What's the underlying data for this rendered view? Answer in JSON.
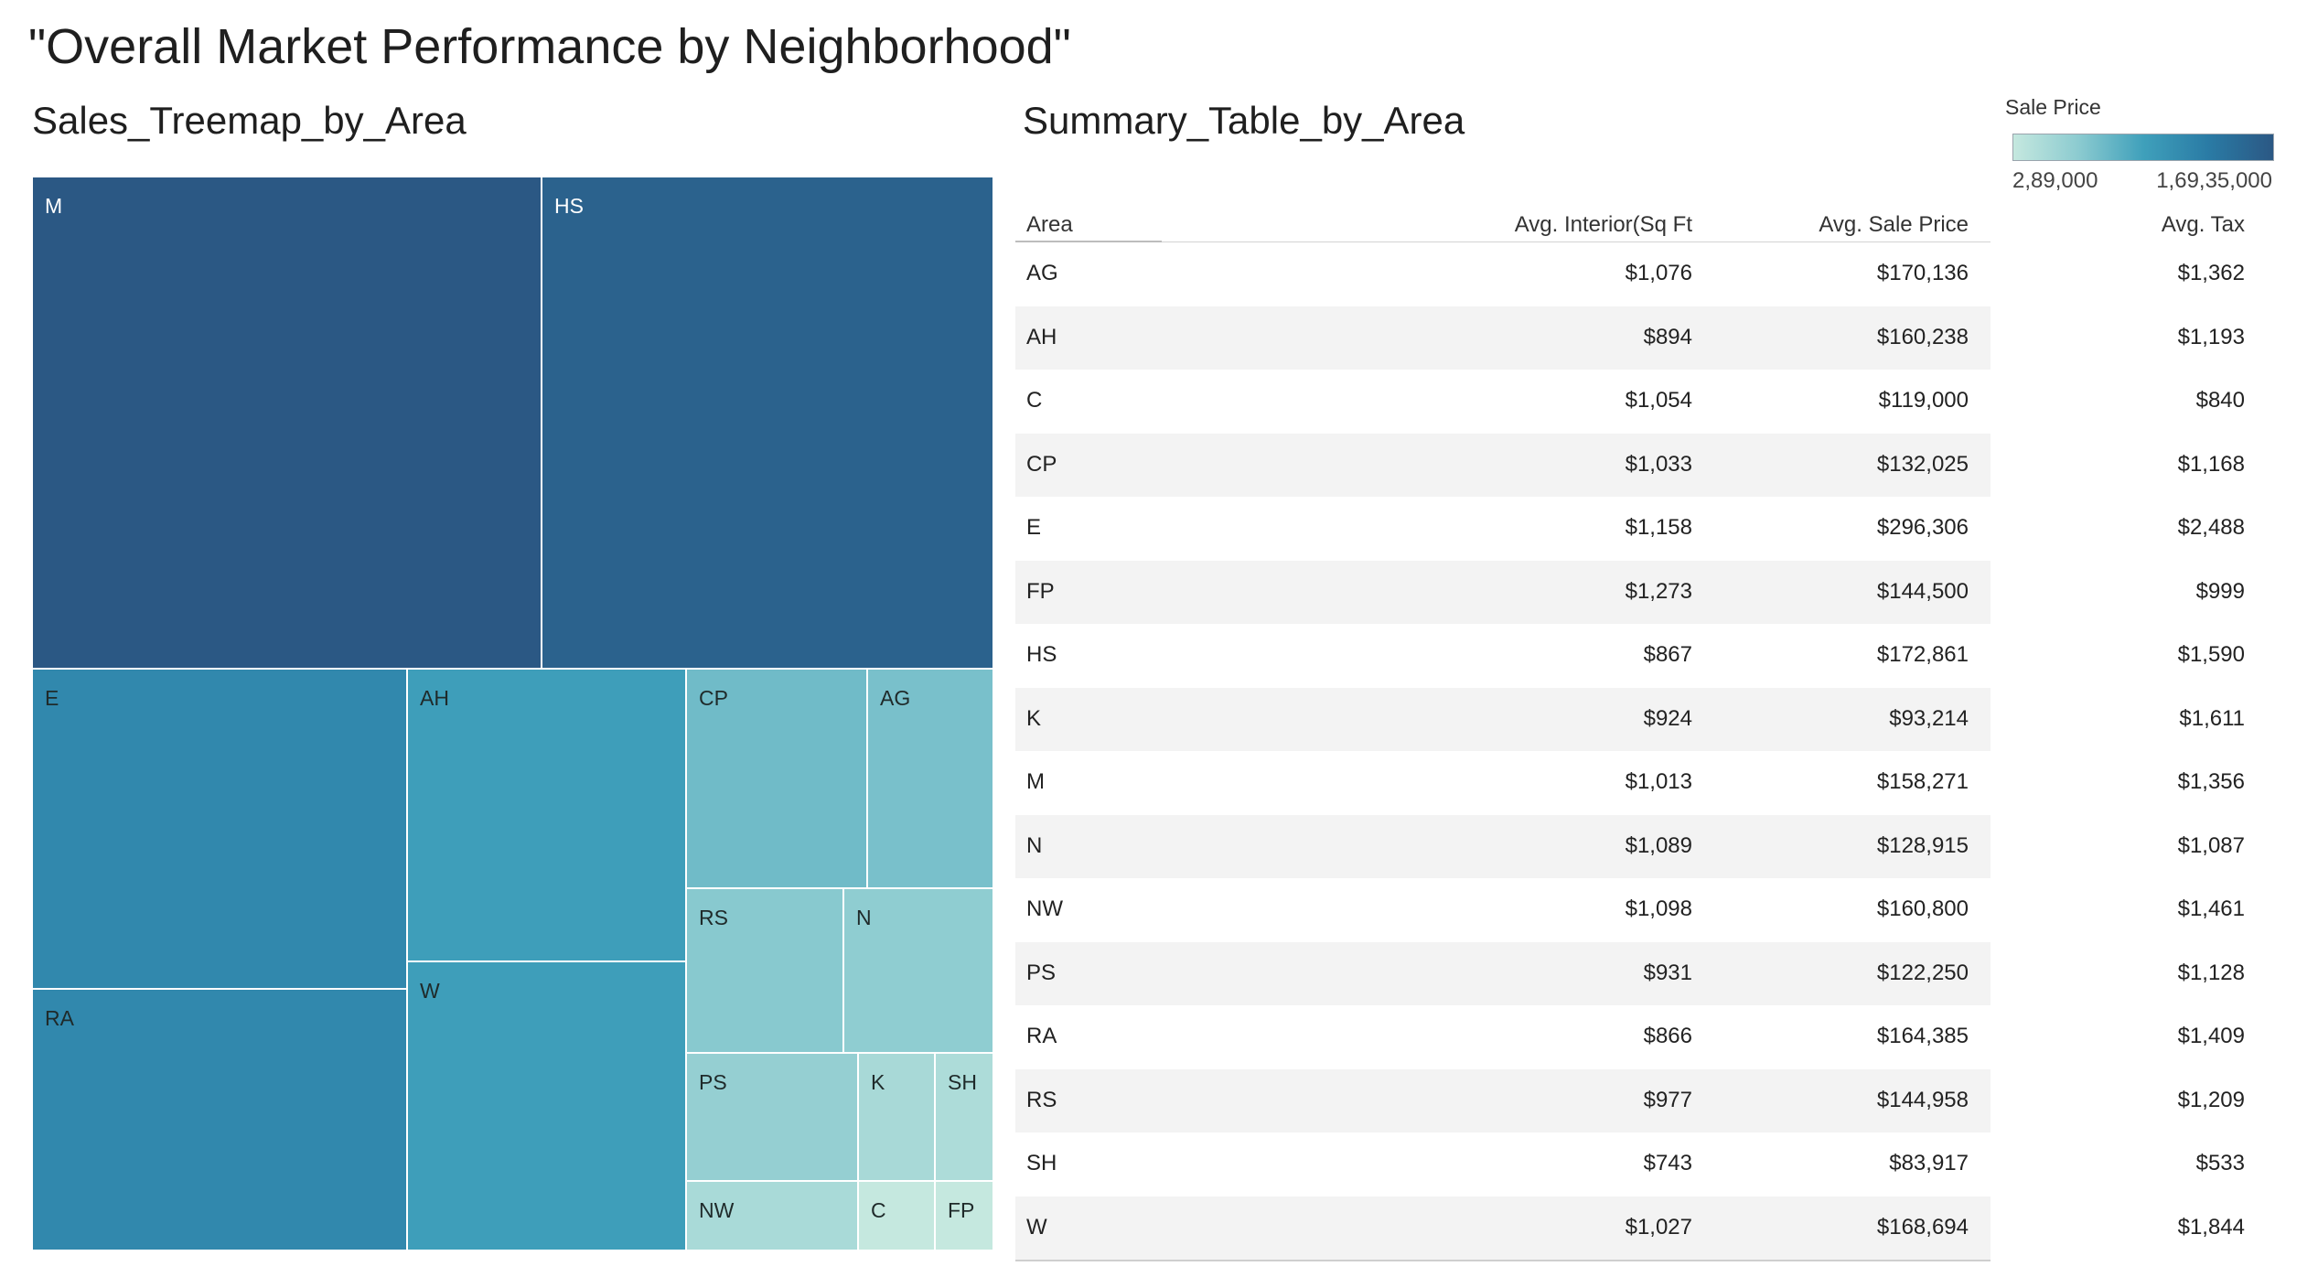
{
  "dashboard": {
    "title": "\"Overall Market Performance by Neighborhood\""
  },
  "treemap": {
    "title": "Sales_Treemap_by_Area"
  },
  "summary": {
    "title": "Summary_Table_by_Area",
    "headers": {
      "area": "Area",
      "interior": "Avg. Interior(Sq Ft",
      "sale_price": "Avg. Sale Price",
      "tax": "Avg. Tax"
    },
    "rows": [
      {
        "area": "AG",
        "interior": "$1,076",
        "sale_price": "$170,136",
        "tax": "$1,362"
      },
      {
        "area": "AH",
        "interior": "$894",
        "sale_price": "$160,238",
        "tax": "$1,193"
      },
      {
        "area": "C",
        "interior": "$1,054",
        "sale_price": "$119,000",
        "tax": "$840"
      },
      {
        "area": "CP",
        "interior": "$1,033",
        "sale_price": "$132,025",
        "tax": "$1,168"
      },
      {
        "area": "E",
        "interior": "$1,158",
        "sale_price": "$296,306",
        "tax": "$2,488"
      },
      {
        "area": "FP",
        "interior": "$1,273",
        "sale_price": "$144,500",
        "tax": "$999"
      },
      {
        "area": "HS",
        "interior": "$867",
        "sale_price": "$172,861",
        "tax": "$1,590"
      },
      {
        "area": "K",
        "interior": "$924",
        "sale_price": "$93,214",
        "tax": "$1,611"
      },
      {
        "area": "M",
        "interior": "$1,013",
        "sale_price": "$158,271",
        "tax": "$1,356"
      },
      {
        "area": "N",
        "interior": "$1,089",
        "sale_price": "$128,915",
        "tax": "$1,087"
      },
      {
        "area": "NW",
        "interior": "$1,098",
        "sale_price": "$160,800",
        "tax": "$1,461"
      },
      {
        "area": "PS",
        "interior": "$931",
        "sale_price": "$122,250",
        "tax": "$1,128"
      },
      {
        "area": "RA",
        "interior": "$866",
        "sale_price": "$164,385",
        "tax": "$1,409"
      },
      {
        "area": "RS",
        "interior": "$977",
        "sale_price": "$144,958",
        "tax": "$1,209"
      },
      {
        "area": "SH",
        "interior": "$743",
        "sale_price": "$83,917",
        "tax": "$533"
      },
      {
        "area": "W",
        "interior": "$1,027",
        "sale_price": "$168,694",
        "tax": "$1,844"
      }
    ]
  },
  "legend": {
    "title": "Sale Price",
    "min_label": "2,89,000",
    "max_label": "1,69,35,000",
    "colors": [
      "#c5e8df",
      "#8ccbd0",
      "#3fa0bb",
      "#2a7ba5",
      "#2b5884"
    ]
  },
  "chart_data": {
    "type": "treemap",
    "title": "Sales_Treemap_by_Area",
    "color_legend": "Sale Price",
    "color_range": [
      289000,
      16935000
    ],
    "areas": [
      {
        "label": "M",
        "total_sale_price": 16935000
      },
      {
        "label": "HS",
        "total_sale_price": 14900000
      },
      {
        "label": "E",
        "total_sale_price": 8150000
      },
      {
        "label": "RA",
        "total_sale_price": 8150000
      },
      {
        "label": "AH",
        "total_sale_price": 5250000
      },
      {
        "label": "W",
        "total_sale_price": 5250000
      },
      {
        "label": "CP",
        "total_sale_price": 2650000
      },
      {
        "label": "AG",
        "total_sale_price": 2300000
      },
      {
        "label": "RS",
        "total_sale_price": 1750000
      },
      {
        "label": "N",
        "total_sale_price": 1500000
      },
      {
        "label": "PS",
        "total_sale_price": 1280000
      },
      {
        "label": "K",
        "total_sale_price": 680000
      },
      {
        "label": "SH",
        "total_sale_price": 560000
      },
      {
        "label": "NW",
        "total_sale_price": 650000
      },
      {
        "label": "C",
        "total_sale_price": 289000
      },
      {
        "label": "FP",
        "total_sale_price": 289000
      }
    ]
  }
}
